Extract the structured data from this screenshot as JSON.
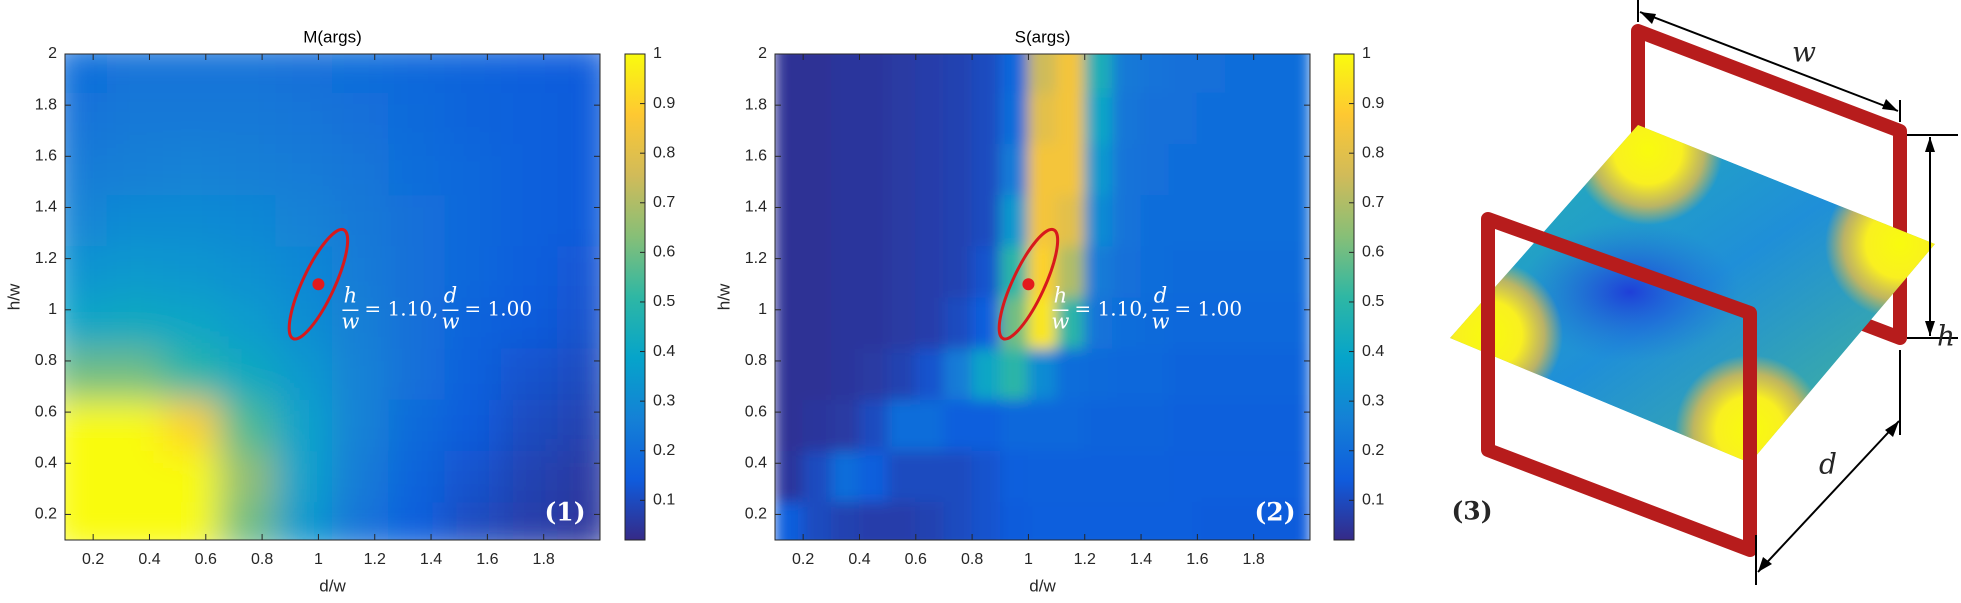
{
  "chart_data": [
    {
      "type": "heatmap",
      "title": "M(args)",
      "xlabel": "d/w",
      "ylabel": "h/w",
      "x": [
        0.15,
        0.35,
        0.55,
        0.75,
        0.95,
        1.15,
        1.35,
        1.55,
        1.75,
        1.95
      ],
      "y": [
        0.15,
        0.35,
        0.55,
        0.75,
        0.95,
        1.15,
        1.35,
        1.55,
        1.75,
        1.95
      ],
      "z": [
        [
          1,
          1,
          1,
          0.6,
          0.35,
          0.22,
          0.15,
          0.1,
          0.07,
          0.05
        ],
        [
          1,
          1,
          1,
          0.65,
          0.38,
          0.25,
          0.17,
          0.12,
          0.08,
          0.06
        ],
        [
          1,
          1,
          0.9,
          0.55,
          0.38,
          0.27,
          0.19,
          0.14,
          0.1,
          0.08
        ],
        [
          0.6,
          0.6,
          0.5,
          0.42,
          0.35,
          0.27,
          0.21,
          0.16,
          0.12,
          0.1
        ],
        [
          0.4,
          0.42,
          0.4,
          0.36,
          0.31,
          0.26,
          0.21,
          0.17,
          0.14,
          0.12
        ],
        [
          0.33,
          0.35,
          0.34,
          0.32,
          0.29,
          0.25,
          0.21,
          0.18,
          0.15,
          0.13
        ],
        [
          0.28,
          0.3,
          0.3,
          0.29,
          0.27,
          0.24,
          0.21,
          0.18,
          0.16,
          0.14
        ],
        [
          0.25,
          0.26,
          0.27,
          0.26,
          0.25,
          0.23,
          0.2,
          0.18,
          0.16,
          0.14
        ],
        [
          0.22,
          0.24,
          0.24,
          0.24,
          0.23,
          0.21,
          0.19,
          0.17,
          0.16,
          0.14
        ],
        [
          0.2,
          0.22,
          0.22,
          0.22,
          0.21,
          0.2,
          0.18,
          0.17,
          0.15,
          0.14
        ]
      ],
      "xlim": [
        0.1,
        2
      ],
      "ylim": [
        0.1,
        2
      ],
      "xticks": [
        0.2,
        0.4,
        0.6,
        0.8,
        1,
        1.2,
        1.4,
        1.6,
        1.8
      ],
      "yticks": [
        0.2,
        0.4,
        0.6,
        0.8,
        1,
        1.2,
        1.4,
        1.6,
        1.8,
        2
      ],
      "zlim": [
        0.02,
        1
      ],
      "zticks": [
        0.1,
        0.2,
        0.3,
        0.4,
        0.5,
        0.6,
        0.7,
        0.8,
        0.9,
        1
      ],
      "colormap": "parula",
      "annotation": {
        "x": 1,
        "y": 1.1,
        "parts": [
          "h",
          "w",
          "= 1.10,",
          "d",
          "w",
          "= 1.00"
        ]
      },
      "panel_label": "(1)"
    },
    {
      "type": "heatmap",
      "title": "S(args)",
      "xlabel": "d/w",
      "ylabel": "h/w",
      "x": [
        0.15,
        0.25,
        0.35,
        0.45,
        0.55,
        0.65,
        0.75,
        0.85,
        0.95,
        1.05,
        1.15,
        1.25,
        1.35,
        1.45,
        1.55,
        1.65,
        1.75,
        1.85,
        1.95
      ],
      "y": [
        0.15,
        0.35,
        0.55,
        0.75,
        0.95,
        1.15,
        1.35,
        1.55,
        1.75,
        1.95
      ],
      "z": [
        [
          0.15,
          0.1,
          0.08,
          0.07,
          0.07,
          0.08,
          0.1,
          0.12,
          0.14,
          0.15,
          0.15,
          0.15,
          0.15,
          0.15,
          0.15,
          0.14,
          0.14,
          0.14,
          0.14
        ],
        [
          0.05,
          0.1,
          0.2,
          0.15,
          0.1,
          0.1,
          0.1,
          0.12,
          0.15,
          0.16,
          0.16,
          0.16,
          0.16,
          0.16,
          0.15,
          0.15,
          0.15,
          0.15,
          0.15
        ],
        [
          0.04,
          0.05,
          0.06,
          0.1,
          0.2,
          0.2,
          0.15,
          0.15,
          0.18,
          0.18,
          0.18,
          0.17,
          0.17,
          0.17,
          0.16,
          0.16,
          0.16,
          0.16,
          0.16
        ],
        [
          0.04,
          0.04,
          0.05,
          0.06,
          0.08,
          0.12,
          0.25,
          0.4,
          0.5,
          0.3,
          0.2,
          0.19,
          0.18,
          0.18,
          0.17,
          0.17,
          0.17,
          0.17,
          0.17
        ],
        [
          0.04,
          0.04,
          0.05,
          0.05,
          0.06,
          0.07,
          0.1,
          0.15,
          0.6,
          0.95,
          0.5,
          0.22,
          0.2,
          0.19,
          0.18,
          0.18,
          0.18,
          0.18,
          0.18
        ],
        [
          0.04,
          0.04,
          0.05,
          0.05,
          0.06,
          0.07,
          0.08,
          0.12,
          0.5,
          0.9,
          0.7,
          0.25,
          0.21,
          0.2,
          0.19,
          0.19,
          0.19,
          0.19,
          0.19
        ],
        [
          0.04,
          0.04,
          0.05,
          0.05,
          0.06,
          0.07,
          0.08,
          0.1,
          0.35,
          0.85,
          0.8,
          0.3,
          0.22,
          0.2,
          0.2,
          0.2,
          0.2,
          0.2,
          0.2
        ],
        [
          0.04,
          0.04,
          0.05,
          0.05,
          0.06,
          0.07,
          0.08,
          0.1,
          0.25,
          0.85,
          0.85,
          0.35,
          0.22,
          0.21,
          0.2,
          0.2,
          0.2,
          0.2,
          0.2
        ],
        [
          0.04,
          0.04,
          0.05,
          0.05,
          0.06,
          0.07,
          0.08,
          0.1,
          0.2,
          0.8,
          0.85,
          0.4,
          0.23,
          0.21,
          0.21,
          0.2,
          0.2,
          0.2,
          0.2
        ],
        [
          0.04,
          0.04,
          0.05,
          0.05,
          0.06,
          0.07,
          0.08,
          0.1,
          0.18,
          0.75,
          0.85,
          0.45,
          0.24,
          0.22,
          0.21,
          0.21,
          0.2,
          0.2,
          0.2
        ]
      ],
      "xlim": [
        0.1,
        2
      ],
      "ylim": [
        0.1,
        2
      ],
      "xticks": [
        0.2,
        0.4,
        0.6,
        0.8,
        1,
        1.2,
        1.4,
        1.6,
        1.8
      ],
      "yticks": [
        0.2,
        0.4,
        0.6,
        0.8,
        1,
        1.2,
        1.4,
        1.6,
        1.8,
        2
      ],
      "zlim": [
        0.02,
        1
      ],
      "zticks": [
        0.1,
        0.2,
        0.3,
        0.4,
        0.5,
        0.6,
        0.7,
        0.8,
        0.9,
        1
      ],
      "colormap": "parula",
      "annotation": {
        "x": 1,
        "y": 1.1,
        "parts": [
          "h",
          "w",
          "= 1.10,",
          "d",
          "w",
          "= 1.00"
        ]
      },
      "panel_label": "(2)"
    }
  ],
  "diagram": {
    "labels": {
      "w": "w",
      "h": "h",
      "d": "d"
    },
    "panel_label": "(3)"
  }
}
